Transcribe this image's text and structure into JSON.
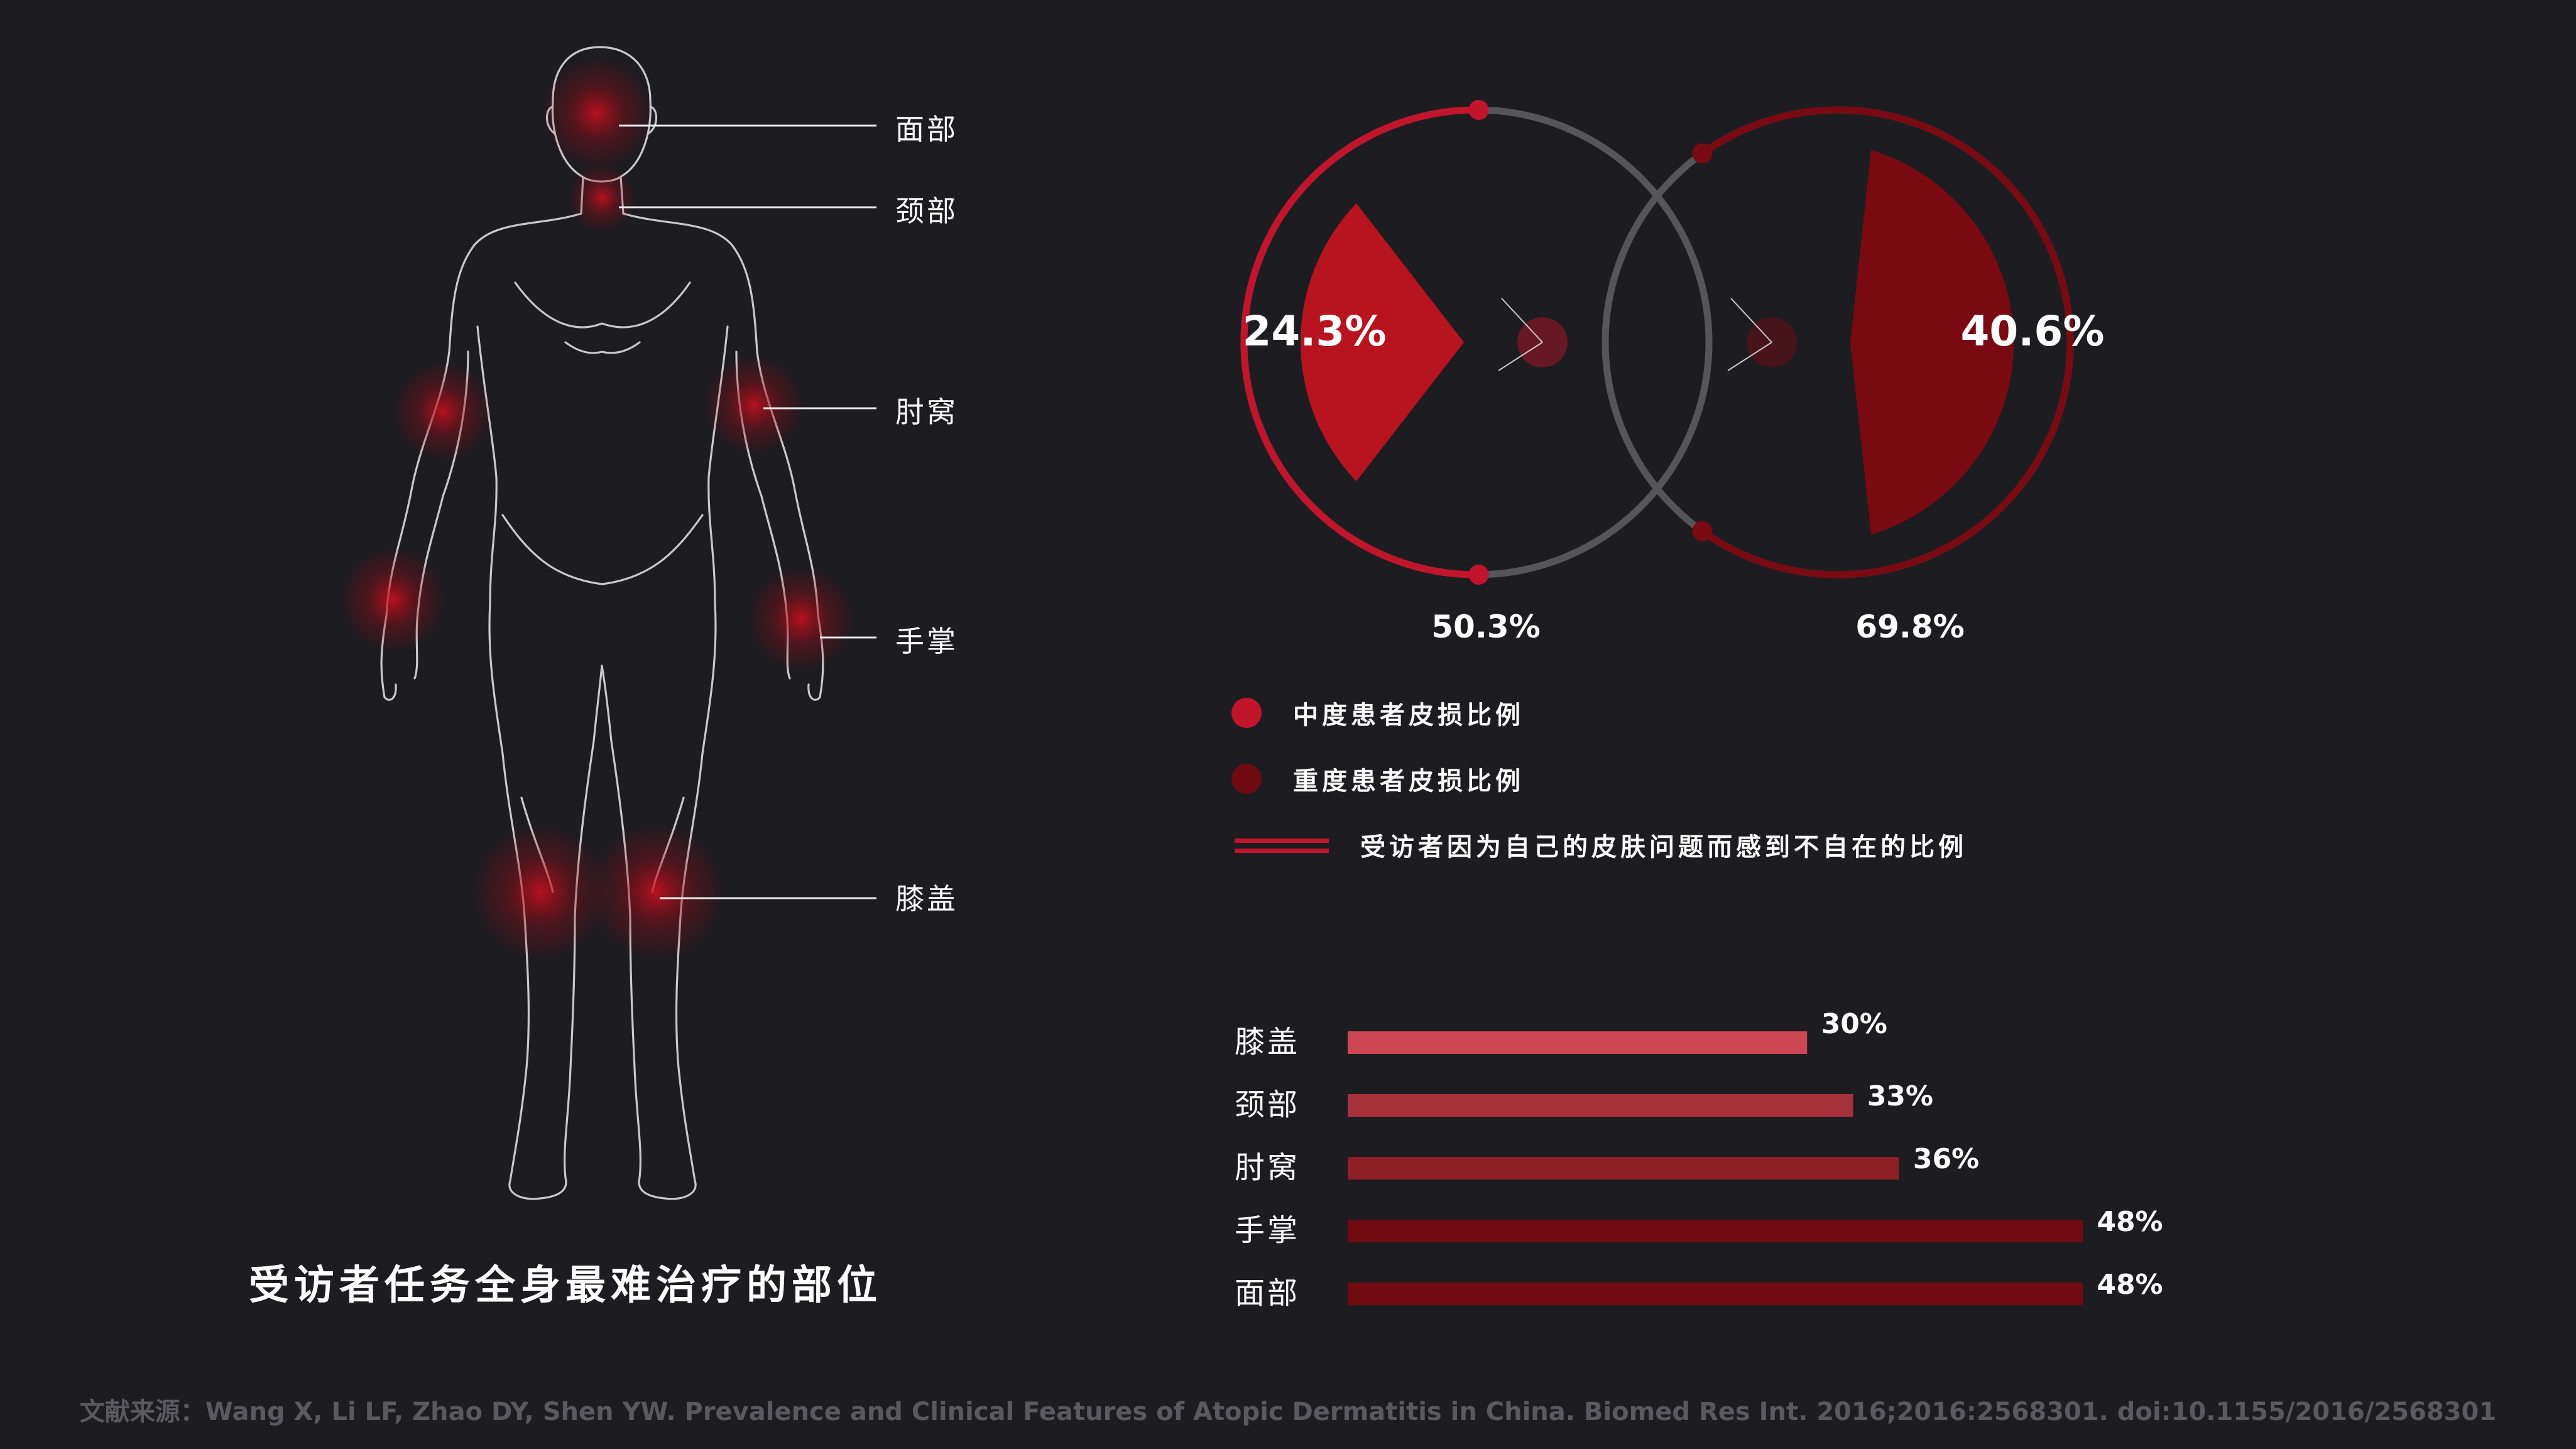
{
  "body_figure": {
    "caption": "受访者任务全身最难治疗的部位",
    "labels": [
      "面部",
      "颈部",
      "肘窝",
      "手掌",
      "膝盖"
    ]
  },
  "chart_data": [
    {
      "type": "pie",
      "title": "",
      "colors": {
        "moderate": "#c0152a",
        "severe": "#7a0a12",
        "ring": "#56565a"
      },
      "donuts": [
        {
          "inner_value_label": "24.3%",
          "inner_value": 24.3,
          "inner_color": "#b7141f",
          "ring_value_label": "50.3%",
          "ring_value": 50.3,
          "ring_color": "#c0152a"
        },
        {
          "inner_value_label": "40.6%",
          "inner_value": 40.6,
          "inner_color": "#7a0a12",
          "ring_value_label": "69.8%",
          "ring_value": 69.8,
          "ring_color": "#7a0a12"
        }
      ],
      "legend": [
        {
          "label": "中度患者皮损比例",
          "color": "#c0152a",
          "kind": "dot"
        },
        {
          "label": "重度患者皮损比例",
          "color": "#6e0a10",
          "kind": "dot"
        },
        {
          "label": "受访者因为自己的皮肤问题而感到不自在的比例",
          "color": "#c0152a",
          "kind": "lines"
        }
      ]
    },
    {
      "type": "bar",
      "title": "",
      "orientation": "horizontal",
      "categories": [
        "膝盖",
        "颈部",
        "肘窝",
        "手掌",
        "面部"
      ],
      "values": [
        30,
        33,
        36,
        48,
        48
      ],
      "value_labels": [
        "30%",
        "33%",
        "36%",
        "48%",
        "48%"
      ],
      "colors": [
        "#cc4752",
        "#a8323c",
        "#8e1f27",
        "#720a12",
        "#720a12"
      ],
      "xlim": [
        0,
        48
      ]
    }
  ],
  "source": "文献来源：Wang X, Li LF, Zhao DY, Shen YW. Prevalence and Clinical Features of Atopic Dermatitis in China. Biomed Res Int. 2016;2016:2568301. doi:10.1155/2016/2568301"
}
